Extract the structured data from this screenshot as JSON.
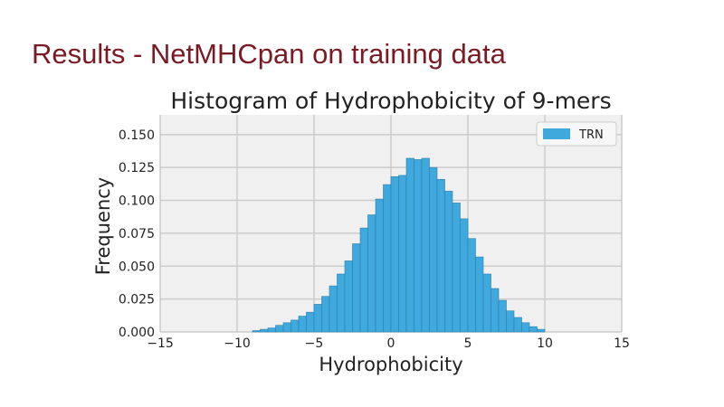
{
  "slide": {
    "title": "Results - NetMHCpan on training data"
  },
  "colors": {
    "title": "#7a1a25",
    "bar_fill": "#3fa9de",
    "bar_edge": "#2d7fa8",
    "plot_bg": "#f0f0f0",
    "grid": "#cbcbcb"
  },
  "chart_data": {
    "type": "bar",
    "title": "Histogram of Hydrophobicity of 9-mers",
    "xlabel": "Hydrophobicity",
    "ylabel": "Frequency",
    "xlim": [
      -15,
      15
    ],
    "ylim": [
      0,
      0.165
    ],
    "xticks": [
      -15,
      -10,
      -5,
      0,
      5,
      10,
      15
    ],
    "xtick_labels": [
      "−15",
      "−10",
      "−5",
      "0",
      "5",
      "10",
      "15"
    ],
    "yticks": [
      0,
      0.025,
      0.05,
      0.075,
      0.1,
      0.125,
      0.15
    ],
    "ytick_labels": [
      "0.000",
      "0.025",
      "0.050",
      "0.075",
      "0.100",
      "0.125",
      "0.150"
    ],
    "grid": true,
    "legend_position": "top-right",
    "series": [
      {
        "name": "TRN",
        "bin_edges": [
          -9.0,
          -8.5,
          -8.0,
          -7.5,
          -7.0,
          -6.5,
          -6.0,
          -5.5,
          -5.0,
          -4.5,
          -4.0,
          -3.5,
          -3.0,
          -2.5,
          -2.0,
          -1.5,
          -1.0,
          -0.5,
          0.0,
          0.5,
          1.0,
          1.5,
          2.0,
          2.5,
          3.0,
          3.5,
          4.0,
          4.5,
          5.0,
          5.5,
          6.0,
          6.5,
          7.0,
          7.5,
          8.0,
          8.5,
          9.0,
          9.5,
          10.0
        ],
        "values": [
          0.001,
          0.002,
          0.003,
          0.005,
          0.007,
          0.009,
          0.012,
          0.015,
          0.021,
          0.027,
          0.035,
          0.044,
          0.054,
          0.067,
          0.079,
          0.089,
          0.101,
          0.112,
          0.118,
          0.119,
          0.132,
          0.131,
          0.132,
          0.125,
          0.116,
          0.107,
          0.098,
          0.086,
          0.071,
          0.057,
          0.044,
          0.033,
          0.024,
          0.016,
          0.011,
          0.007,
          0.004,
          0.002
        ]
      }
    ]
  }
}
